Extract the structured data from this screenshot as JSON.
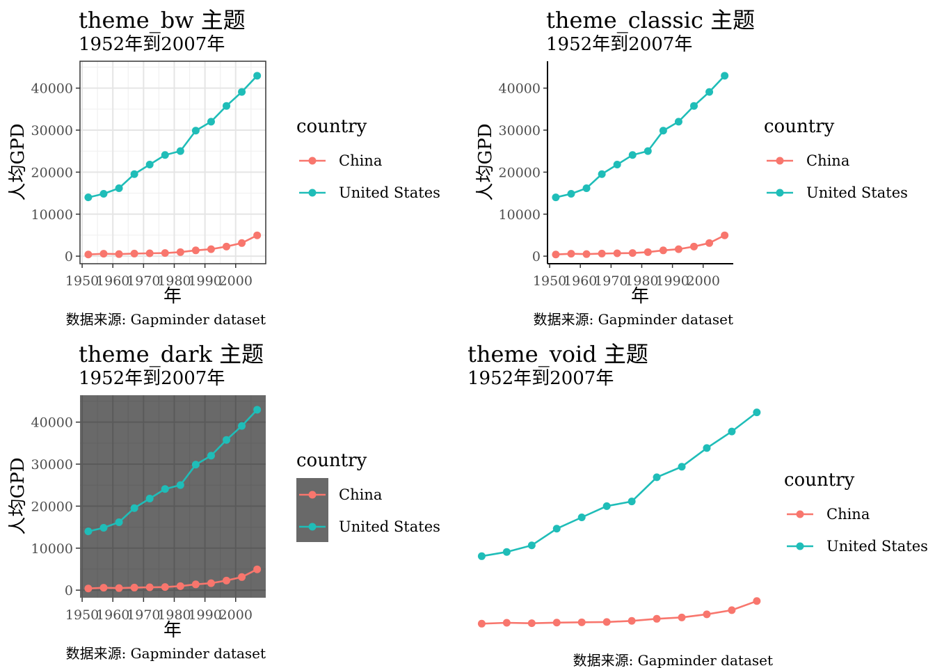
{
  "colors": {
    "china": "#F8766D",
    "us": "#1FBDB8"
  },
  "chart_data": [
    {
      "type": "line",
      "title": "theme_bw 主题",
      "subtitle": "1952年到2007年",
      "xlabel": "年",
      "ylabel": "人均GPD",
      "caption": "数据来源: Gapminder dataset",
      "theme": "bw",
      "grid": true,
      "xticks": [
        "1950",
        "1960",
        "1970",
        "1980",
        "1990",
        "2000"
      ],
      "yticks": [
        "0",
        "10000",
        "20000",
        "30000",
        "40000"
      ],
      "xlim": [
        1949.3,
        2009.8
      ],
      "ylim": [
        -1800,
        46400
      ],
      "x": [
        1952,
        1957,
        1962,
        1967,
        1972,
        1977,
        1982,
        1987,
        1992,
        1997,
        2002,
        2007
      ],
      "series": [
        {
          "name": "China",
          "values": [
            400,
            576,
            488,
            613,
            677,
            741,
            962,
            1379,
            1656,
            2289,
            3119,
            4959
          ]
        },
        {
          "name": "United States",
          "values": [
            13990,
            14847,
            16173,
            19530,
            21806,
            24073,
            25010,
            29884,
            32004,
            35767,
            39097,
            42952
          ]
        }
      ],
      "legend": {
        "title": "country",
        "position": "right",
        "items": [
          "China",
          "United States"
        ]
      }
    },
    {
      "type": "line",
      "title": "theme_classic 主题",
      "subtitle": "1952年到2007年",
      "xlabel": "年",
      "ylabel": "人均GPD",
      "caption": "数据来源: Gapminder dataset",
      "theme": "classic",
      "grid": false,
      "xticks": [
        "1950",
        "1960",
        "1970",
        "1980",
        "1990",
        "2000"
      ],
      "yticks": [
        "0",
        "10000",
        "20000",
        "30000",
        "40000"
      ],
      "xlim": [
        1949.3,
        2009.8
      ],
      "ylim": [
        -1800,
        46400
      ],
      "x": [
        1952,
        1957,
        1962,
        1967,
        1972,
        1977,
        1982,
        1987,
        1992,
        1997,
        2002,
        2007
      ],
      "series": [
        {
          "name": "China",
          "values": [
            400,
            576,
            488,
            613,
            677,
            741,
            962,
            1379,
            1656,
            2289,
            3119,
            4959
          ]
        },
        {
          "name": "United States",
          "values": [
            13990,
            14847,
            16173,
            19530,
            21806,
            24073,
            25010,
            29884,
            32004,
            35767,
            39097,
            42952
          ]
        }
      ],
      "legend": {
        "title": "country",
        "position": "right",
        "items": [
          "China",
          "United States"
        ]
      }
    },
    {
      "type": "line",
      "title": "theme_dark 主题",
      "subtitle": "1952年到2007年",
      "xlabel": "年",
      "ylabel": "人均GPD",
      "caption": "数据来源: Gapminder dataset",
      "theme": "dark",
      "grid": true,
      "xticks": [
        "1950",
        "1960",
        "1970",
        "1980",
        "1990",
        "2000"
      ],
      "yticks": [
        "0",
        "10000",
        "20000",
        "30000",
        "40000"
      ],
      "xlim": [
        1949.3,
        2009.8
      ],
      "ylim": [
        -1800,
        46400
      ],
      "x": [
        1952,
        1957,
        1962,
        1967,
        1972,
        1977,
        1982,
        1987,
        1992,
        1997,
        2002,
        2007
      ],
      "series": [
        {
          "name": "China",
          "values": [
            400,
            576,
            488,
            613,
            677,
            741,
            962,
            1379,
            1656,
            2289,
            3119,
            4959
          ]
        },
        {
          "name": "United States",
          "values": [
            13990,
            14847,
            16173,
            19530,
            21806,
            24073,
            25010,
            29884,
            32004,
            35767,
            39097,
            42952
          ]
        }
      ],
      "legend": {
        "title": "country",
        "position": "right",
        "items": [
          "China",
          "United States"
        ]
      }
    },
    {
      "type": "line",
      "title": "theme_void 主题",
      "subtitle": "1952年到2007年",
      "xlabel": "",
      "ylabel": "",
      "caption": "数据来源: Gapminder dataset",
      "theme": "void",
      "grid": false,
      "xticks": [],
      "yticks": [],
      "xlim": [
        1949.3,
        2009.8
      ],
      "ylim": [
        -1800,
        46400
      ],
      "x": [
        1952,
        1957,
        1962,
        1967,
        1972,
        1977,
        1982,
        1987,
        1992,
        1997,
        2002,
        2007
      ],
      "series": [
        {
          "name": "China",
          "values": [
            400,
            576,
            488,
            613,
            677,
            741,
            962,
            1379,
            1656,
            2289,
            3119,
            4959
          ]
        },
        {
          "name": "United States",
          "values": [
            13990,
            14847,
            16173,
            19530,
            21806,
            24073,
            25010,
            29884,
            32004,
            35767,
            39097,
            42952
          ]
        }
      ],
      "legend": {
        "title": "country",
        "position": "right",
        "items": [
          "China",
          "United States"
        ]
      }
    }
  ]
}
